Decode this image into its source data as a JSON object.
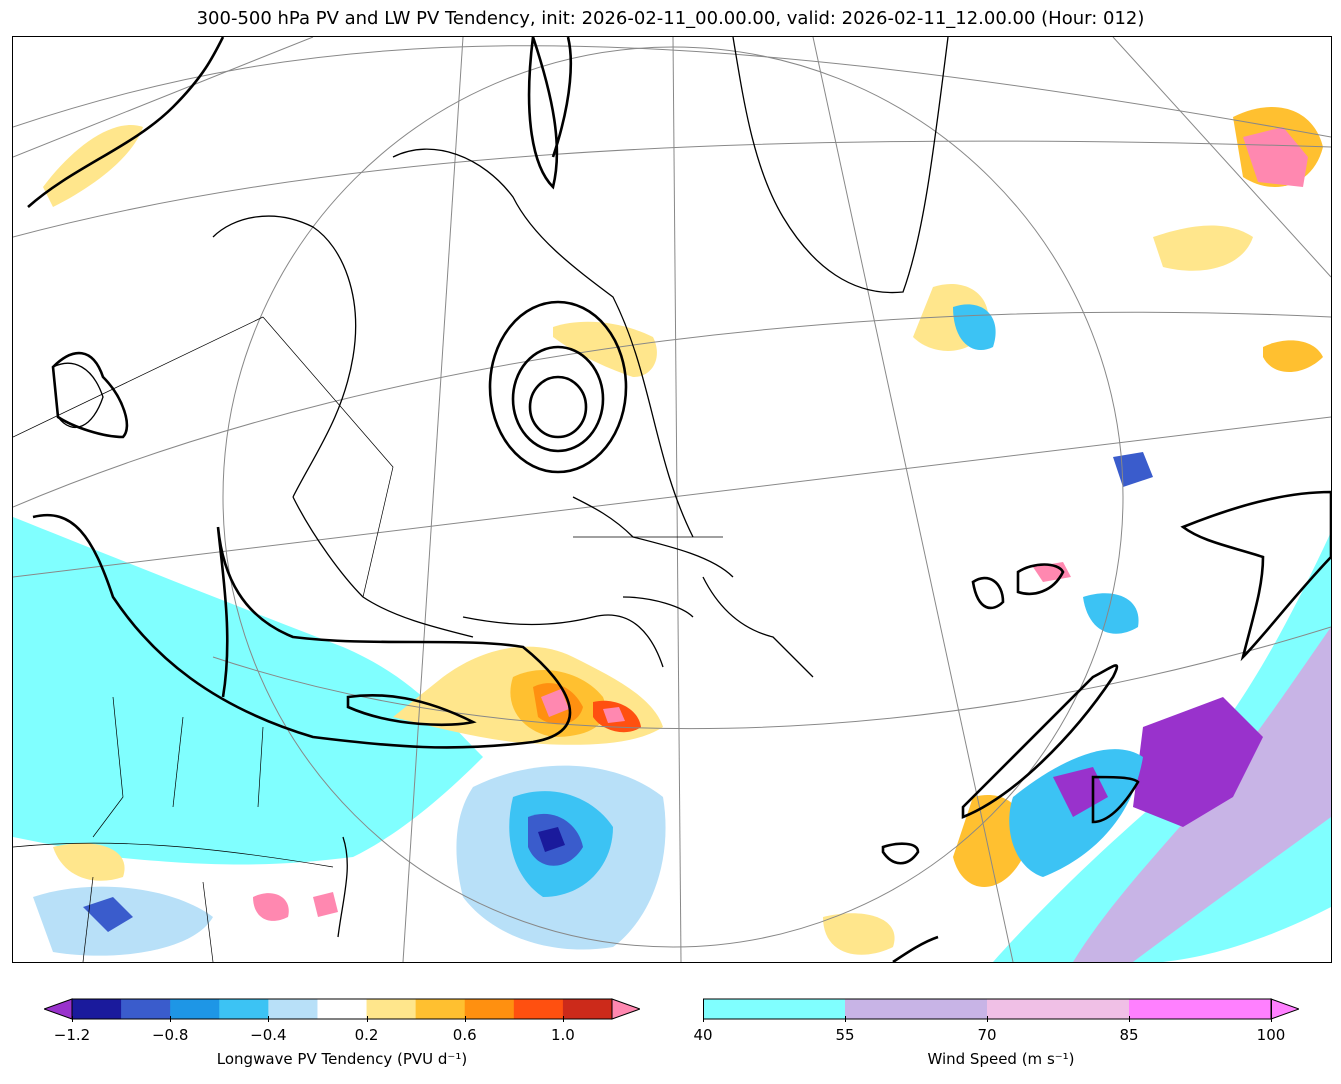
{
  "title": "300-500 hPa PV and LW PV Tendency, init: 2026-02-11_00.00.00, valid: 2026-02-11_12.00.00 (Hour: 012)",
  "pv_colorbar": {
    "label": "Longwave PV Tendency (PVU d⁻¹)",
    "bins": [
      -1.2,
      -1.0,
      -0.8,
      -0.6,
      -0.4,
      -0.2,
      0.2,
      0.4,
      0.6,
      0.8,
      1.0,
      1.2
    ],
    "colors": [
      "#1a1a9c",
      "#3a5ccc",
      "#1e96e6",
      "#3cc3f4",
      "#b8e0f8",
      "#ffffff",
      "#ffe68c",
      "#ffc030",
      "#ff9010",
      "#ff5010",
      "#cc2a1a"
    ],
    "under_color": "#9932cc",
    "over_color": "#ff88b0",
    "tick_labels": [
      "−1.2",
      "−0.8",
      "−0.4",
      "0.2",
      "0.6",
      "1.0"
    ],
    "tick_values": [
      -1.2,
      -0.8,
      -0.4,
      0.2,
      0.6,
      1.0
    ]
  },
  "wind_colorbar": {
    "label": "Wind Speed (m s⁻¹)",
    "bins": [
      40,
      55,
      70,
      85,
      100
    ],
    "colors": [
      "#80ffff",
      "#c8b4e6",
      "#f0c0e6",
      "#ff80ff"
    ],
    "tick_labels": [
      "40",
      "55",
      "70",
      "85",
      "100"
    ]
  },
  "map_layers": {
    "projection": "polar stereographic",
    "features": [
      "coastlines",
      "country borders",
      "state/province borders",
      "lat/lon gridlines",
      "PV contours (black)"
    ]
  }
}
